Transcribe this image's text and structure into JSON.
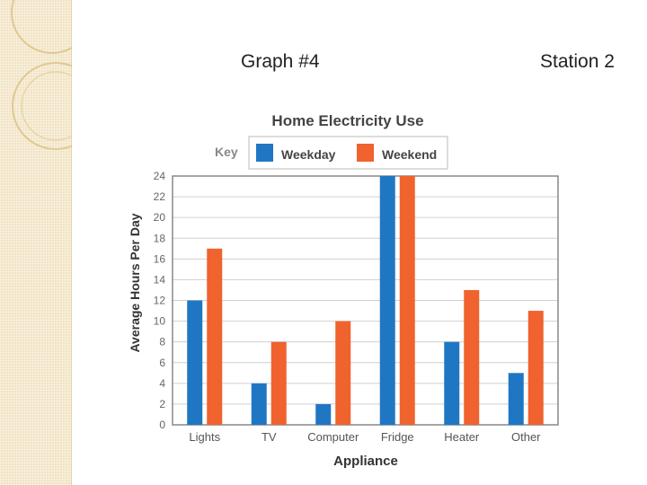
{
  "slide": {
    "graph_label": "Graph #4",
    "station_label": "Station 2"
  },
  "chart_data": {
    "type": "bar",
    "title": "Home Electricity Use",
    "legend_title": "Key",
    "legend_placement": "top",
    "xlabel": "Appliance",
    "ylabel": "Average Hours Per Day",
    "categories": [
      "Lights",
      "TV",
      "Computer",
      "Fridge",
      "Heater",
      "Other"
    ],
    "series": [
      {
        "name": "Weekday",
        "color": "#1f77c4",
        "values": [
          12,
          4,
          2,
          24,
          8,
          5
        ]
      },
      {
        "name": "Weekend",
        "color": "#f0622e",
        "values": [
          17,
          8,
          10,
          24,
          13,
          11
        ]
      }
    ],
    "ylim": [
      0,
      24
    ],
    "yticks": [
      0,
      2,
      4,
      6,
      8,
      10,
      12,
      14,
      16,
      18,
      20,
      22,
      24
    ],
    "grid": true
  }
}
